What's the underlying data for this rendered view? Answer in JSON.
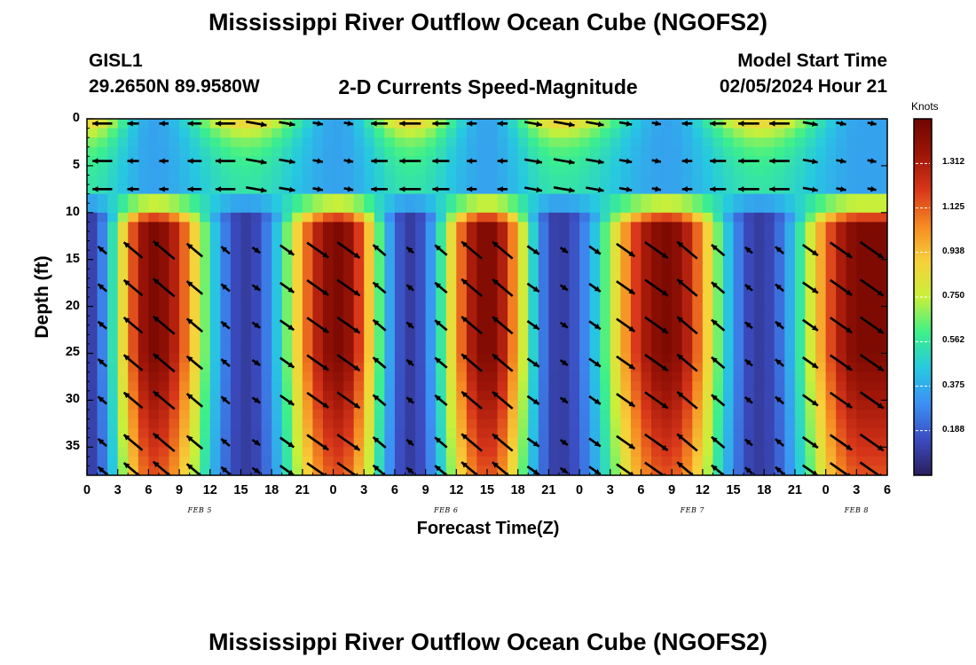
{
  "page": {
    "title": "Mississippi River Outflow Ocean Cube (NGOFS2)",
    "footer_title": "Mississippi River Outflow Ocean Cube (NGOFS2)",
    "station_id": "GISL1",
    "station_coords": "29.2650N  89.9580W",
    "model_start_label": "Model Start Time",
    "model_start_value": "02/05/2024 Hour 21"
  },
  "chart_data": {
    "type": "heatmap",
    "title": "2-D Currents Speed-Magnitude",
    "xlabel": "Forecast Time(Z)",
    "ylabel": "Depth (ft)",
    "xlim": [
      0,
      78
    ],
    "ylim": [
      38,
      0
    ],
    "y_inverted": true,
    "x_tick_labels": [
      "0",
      "3",
      "6",
      "9",
      "12",
      "15",
      "18",
      "21",
      "0",
      "3",
      "6",
      "9",
      "12",
      "15",
      "18",
      "21",
      "0",
      "3",
      "6",
      "9",
      "12",
      "15",
      "18",
      "21",
      "0",
      "3",
      "6"
    ],
    "y_ticks": [
      0,
      5,
      10,
      15,
      20,
      25,
      30,
      35
    ],
    "date_labels": [
      {
        "label": "FEB 5",
        "hour": 11
      },
      {
        "label": "FEB 6",
        "hour": 35
      },
      {
        "label": "FEB 7",
        "hour": 59
      },
      {
        "label": "FEB 8",
        "hour": 75
      }
    ],
    "colorbar": {
      "units": "Knots",
      "min": 0,
      "max": 1.5,
      "tick_labels": [
        "1.312",
        "1.125",
        "0.938",
        "0.750",
        "0.562",
        "0.375",
        "0.188"
      ],
      "tick_values": [
        1.312,
        1.125,
        0.938,
        0.75,
        0.562,
        0.375,
        0.188
      ],
      "colormap": [
        "#2a1e5c",
        "#3b4cc0",
        "#3d8ff5",
        "#26c9e0",
        "#3df08a",
        "#c8f03a",
        "#f7d13a",
        "#f58a22",
        "#d8371a",
        "#9e1508",
        "#6e0600"
      ]
    },
    "series": [
      {
        "depth_band": "upper",
        "depth_range": [
          0,
          8
        ],
        "peak_speed_knots": 0.75
      },
      {
        "depth_band": "lower",
        "depth_range": [
          10,
          38
        ],
        "peak_speed_knots": 1.35
      }
    ],
    "peak_times_hours": [
      6.5,
      24.5,
      39,
      56.5,
      75.5
    ],
    "slack_times_hours": [
      0,
      15.5,
      31.5,
      46,
      65.5
    ],
    "grid": false
  }
}
